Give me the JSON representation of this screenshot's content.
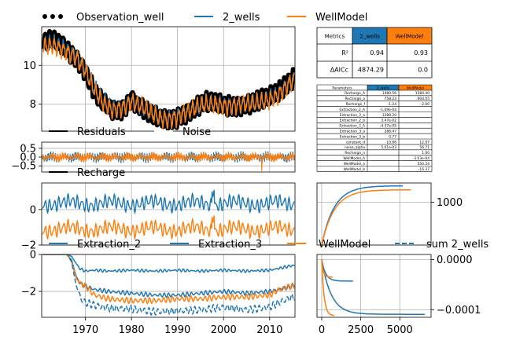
{
  "colors": {
    "observation": "#000000",
    "two_wells": "#1f77b4",
    "wellmodel": "#ff7f0e",
    "grid": "#b0b0b0"
  },
  "legend_top": [
    {
      "label": "Observation_well",
      "style": "dots",
      "color": "#000000"
    },
    {
      "label": "2_wells",
      "style": "line",
      "color": "#1f77b4"
    },
    {
      "label": "WellModel",
      "style": "line",
      "color": "#ff7f0e"
    }
  ],
  "chart_data": [
    {
      "type": "line",
      "id": "heads",
      "ylim": [
        6.6,
        12.0
      ],
      "xlim": [
        1960.5,
        2015.5
      ],
      "yticks": [
        "8",
        "10"
      ],
      "ytick_values": [
        8,
        10
      ],
      "grid": true,
      "series": [
        {
          "name": "Observation_well",
          "x": [
            1961,
            1963,
            1965,
            1968,
            1970,
            1972,
            1974,
            1976,
            1978,
            1980,
            1982,
            1984,
            1986,
            1988,
            1990,
            1992,
            1994,
            1996,
            1998,
            2000,
            2002,
            2004,
            2006,
            2008,
            2010,
            2012,
            2014,
            2015
          ],
          "y": [
            11.2,
            11.3,
            11.0,
            10.4,
            9.7,
            8.6,
            8.0,
            7.6,
            7.7,
            8.3,
            7.9,
            7.5,
            7.2,
            7.1,
            7.3,
            7.6,
            7.9,
            8.1,
            8.0,
            7.9,
            7.9,
            8.0,
            8.1,
            8.2,
            8.3,
            8.6,
            9.1,
            9.4
          ]
        },
        {
          "name": "2_wells",
          "x": [
            1961,
            1963,
            1965,
            1968,
            1970,
            1972,
            1974,
            1976,
            1978,
            1980,
            1982,
            1984,
            1986,
            1988,
            1990,
            1992,
            1994,
            1996,
            1998,
            2000,
            2002,
            2004,
            2006,
            2008,
            2010,
            2012,
            2014,
            2015
          ],
          "y": [
            11.0,
            11.1,
            10.9,
            10.5,
            9.8,
            8.8,
            8.1,
            7.7,
            7.8,
            8.2,
            7.9,
            7.6,
            7.3,
            7.2,
            7.4,
            7.6,
            7.9,
            8.0,
            8.0,
            7.9,
            7.9,
            8.0,
            8.1,
            8.1,
            8.3,
            8.5,
            9.0,
            9.3
          ]
        },
        {
          "name": "WellModel",
          "x": [
            1961,
            1963,
            1965,
            1968,
            1970,
            1972,
            1974,
            1976,
            1978,
            1980,
            1982,
            1984,
            1986,
            1988,
            1990,
            1992,
            1994,
            1996,
            1998,
            2000,
            2002,
            2004,
            2006,
            2008,
            2010,
            2012,
            2014,
            2015
          ],
          "y": [
            11.0,
            11.0,
            10.8,
            10.4,
            9.7,
            8.7,
            8.0,
            7.7,
            7.8,
            8.1,
            7.9,
            7.6,
            7.3,
            7.2,
            7.3,
            7.6,
            7.8,
            8.0,
            8.0,
            7.9,
            7.9,
            8.0,
            8.0,
            8.1,
            8.2,
            8.5,
            9.0,
            9.2
          ]
        }
      ]
    },
    {
      "type": "line",
      "id": "residuals",
      "legend": [
        {
          "label": "Residuals",
          "color": "#000000"
        },
        {
          "label": "Noise",
          "color": "#ffffff"
        }
      ],
      "ylim": [
        -0.85,
        0.85
      ],
      "xlim": [
        1960.5,
        2015.5
      ],
      "yticks": [
        "0.5",
        "0.0",
        "−0.5"
      ],
      "ytick_values": [
        0.5,
        0.0,
        -0.5
      ],
      "grid": true,
      "series": [
        {
          "name": "2_wells",
          "amplitude": 0.35
        },
        {
          "name": "WellModel",
          "amplitude": 0.32
        }
      ]
    },
    {
      "type": "line",
      "id": "recharge",
      "legend": [
        {
          "label": "Recharge",
          "color": "#000000"
        }
      ],
      "ylim": [
        -2.0,
        1.5
      ],
      "xlim": [
        1960.5,
        2015.5
      ],
      "yticks": [
        "0",
        "−2"
      ],
      "ytick_values": [
        0,
        -2
      ],
      "grid": true,
      "series": [
        {
          "name": "2_wells",
          "mean": 0.35,
          "amplitude": 0.5
        },
        {
          "name": "WellModel",
          "mean": -1.1,
          "amplitude": 0.5
        }
      ]
    },
    {
      "type": "line",
      "id": "extraction",
      "legend": [
        {
          "label": "Extraction_2",
          "color": "#1f77b4",
          "style": "solid"
        },
        {
          "label": "Extraction_3",
          "color": "#1f77b4",
          "style": "solid"
        },
        {
          "label": "WellModel",
          "color": "#ff7f0e",
          "style": "solid"
        },
        {
          "label": "sum 2_wells",
          "color": "#1f77b4",
          "style": "dashed"
        }
      ],
      "ylim": [
        -3.4,
        0.0
      ],
      "xlim": [
        1960.5,
        2015.5
      ],
      "xticks": [
        "1970",
        "1980",
        "1990",
        "2000",
        "2010"
      ],
      "xtick_values": [
        1970,
        1980,
        1990,
        2000,
        2010
      ],
      "yticks": [
        "0",
        "−2"
      ],
      "ytick_values": [
        0,
        -2
      ],
      "grid": true,
      "series": [
        {
          "name": "Extraction_2",
          "x": [
            1961,
            1966,
            1967,
            1968,
            1969,
            1970,
            1972,
            1975,
            1980,
            1985,
            1990,
            1995,
            2000,
            2005,
            2010,
            2012,
            2015
          ],
          "y": [
            0.0,
            0.0,
            -0.1,
            -0.5,
            -0.8,
            -0.9,
            -0.85,
            -0.9,
            -0.85,
            -0.9,
            -0.85,
            -0.9,
            -0.85,
            -0.9,
            -0.85,
            -0.75,
            -0.6
          ]
        },
        {
          "name": "Extraction_3",
          "x": [
            1961,
            1966,
            1967,
            1968,
            1969,
            1970,
            1972,
            1975,
            1980,
            1985,
            1990,
            1995,
            2000,
            2005,
            2010,
            2012,
            2015
          ],
          "y": [
            0.0,
            0.0,
            -0.3,
            -1.2,
            -1.6,
            -1.7,
            -1.9,
            -2.0,
            -2.1,
            -2.2,
            -2.2,
            -2.1,
            -2.0,
            -2.1,
            -2.0,
            -1.9,
            -1.7
          ]
        },
        {
          "name": "WellModel",
          "x": [
            1961,
            1966,
            1967,
            1968,
            1969,
            1970,
            1972,
            1975,
            1980,
            1985,
            1990,
            1995,
            2000,
            2005,
            2010,
            2012,
            2015
          ],
          "y": [
            0.0,
            0.0,
            -0.4,
            -1.3,
            -1.6,
            -1.7,
            -2.2,
            -2.4,
            -2.5,
            -2.5,
            -2.4,
            -2.4,
            -2.3,
            -2.3,
            -2.2,
            -1.9,
            -1.7
          ]
        },
        {
          "name": "sum 2_wells",
          "x": [
            1961,
            1966,
            1967,
            1968,
            1969,
            1970,
            1972,
            1975,
            1980,
            1985,
            1990,
            1995,
            2000,
            2005,
            2010,
            2012,
            2015
          ],
          "y": [
            0.0,
            0.0,
            -0.4,
            -1.7,
            -2.4,
            -2.6,
            -2.75,
            -2.9,
            -2.95,
            -3.1,
            -3.05,
            -3.0,
            -2.85,
            -3.0,
            -2.85,
            -2.6,
            -2.3
          ]
        }
      ]
    },
    {
      "type": "line",
      "id": "recharge_response",
      "ylim": [
        0,
        1450
      ],
      "xlim": [
        0,
        6000
      ],
      "yticks": [
        "1000"
      ],
      "ytick_values": [
        1000
      ],
      "grid": true,
      "series": [
        {
          "name": "2_wells",
          "gain": 1385,
          "tau": 800,
          "xmax": 5200
        },
        {
          "name": "WellModel",
          "gain": 1290,
          "tau": 800,
          "xmax": 5700
        }
      ]
    },
    {
      "type": "line",
      "id": "well_response",
      "ylim": [
        -0.000115,
        1e-05
      ],
      "xlim": [
        -300,
        7000
      ],
      "xticks": [
        "0",
        "2500",
        "5000"
      ],
      "xtick_values": [
        0,
        2500,
        5000
      ],
      "yticks": [
        "0.0000",
        "−0.0001"
      ],
      "ytick_values": [
        0.0,
        -0.0001
      ],
      "grid": true,
      "series": [
        {
          "name": "2_wells",
          "gain": -0.000109,
          "tau": 600,
          "xmax": 6600
        },
        {
          "name": "2_wells",
          "gain": -4.3e-05,
          "tau": 250,
          "xmax": 2000
        },
        {
          "name": "WellModel",
          "gain": -0.000112,
          "tau": 150,
          "xmax": 800
        },
        {
          "name": "WellModel",
          "gain": -3.5e-05,
          "tau": 100,
          "xmax": 700
        }
      ]
    }
  ],
  "metrics_table": {
    "headers": [
      "Metrics",
      "2_wells",
      "WellModel"
    ],
    "rows": [
      [
        "R²",
        "0.94",
        "0.93"
      ],
      [
        "ΔAICc",
        "4874.29",
        "0.0"
      ]
    ]
  },
  "params_table": {
    "headers": [
      "Parameters",
      "2_wells",
      "WellModel"
    ],
    "rows": [
      [
        "Recharge_A",
        "1480.56",
        "1384.40"
      ],
      [
        "Recharge_a",
        "758.23",
        "904.05"
      ],
      [
        "Recharge_f",
        "-1.24",
        "-2.00"
      ],
      [
        "Extraction_2_A",
        "-1.09e-04",
        ""
      ],
      [
        "Extraction_2_a",
        "1289.20",
        ""
      ],
      [
        "Extraction_2_b",
        "3.47e-02",
        ""
      ],
      [
        "Extraction_3_A",
        "-4.37e-05",
        ""
      ],
      [
        "Extraction_3_a",
        "286.47",
        ""
      ],
      [
        "Extraction_3_b",
        "0.77",
        ""
      ],
      [
        "constant_d",
        "10.66",
        "12.07"
      ],
      [
        "noise_alpha",
        "5.01e-03",
        "56.71"
      ],
      [
        "Recharge_n",
        "",
        "1.00"
      ],
      [
        "WellModel_A",
        "",
        "-3.03e-04"
      ],
      [
        "WellModel_a",
        "",
        "550.24"
      ],
      [
        "WellModel_b",
        "",
        "-16.37"
      ]
    ]
  }
}
